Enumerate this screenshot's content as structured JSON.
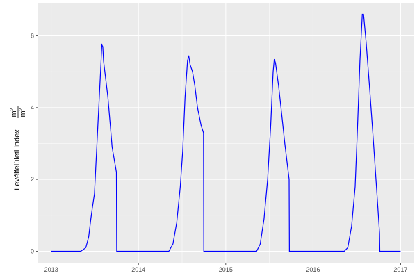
{
  "chart_data": {
    "type": "line",
    "title": "",
    "xlabel": "",
    "ylabel": "Levélfelületi index",
    "ylabel_unit": {
      "numerator": "m",
      "denominator": "m",
      "exponent": "2"
    },
    "xlim": [
      "2012-11-08",
      "2017-02-24"
    ],
    "ylim": [
      -0.32,
      6.9
    ],
    "x_ticks": [
      "2013",
      "2014",
      "2015",
      "2016",
      "2017"
    ],
    "y_ticks": [
      0,
      2,
      4,
      6
    ],
    "grid": true,
    "line_color": "#0000FF",
    "background": "#EBEBEB",
    "series": [
      {
        "points": [
          [
            "2013-01-01",
            0
          ],
          [
            "2013-05-05",
            0
          ],
          [
            "2013-05-26",
            0.1
          ],
          [
            "2013-06-07",
            0.4
          ],
          [
            "2013-06-16",
            0.9
          ],
          [
            "2013-06-22",
            1.2
          ],
          [
            "2013-07-01",
            1.6
          ],
          [
            "2013-07-10",
            2.8
          ],
          [
            "2013-07-19",
            4.0
          ],
          [
            "2013-07-28",
            5.2
          ],
          [
            "2013-08-01",
            5.75
          ],
          [
            "2013-08-05",
            5.7
          ],
          [
            "2013-08-08",
            5.3
          ],
          [
            "2013-08-17",
            4.8
          ],
          [
            "2013-08-26",
            4.3
          ],
          [
            "2013-09-04",
            3.6
          ],
          [
            "2013-09-13",
            2.9
          ],
          [
            "2013-10-01",
            2.2
          ],
          [
            "2013-10-02",
            0
          ],
          [
            "2014-05-08",
            0
          ],
          [
            "2014-05-25",
            0.2
          ],
          [
            "2014-06-10",
            0.8
          ],
          [
            "2014-06-25",
            1.8
          ],
          [
            "2014-07-05",
            2.8
          ],
          [
            "2014-07-15",
            4.3
          ],
          [
            "2014-07-25",
            5.3
          ],
          [
            "2014-07-30",
            5.45
          ],
          [
            "2014-08-05",
            5.2
          ],
          [
            "2014-08-15",
            5.0
          ],
          [
            "2014-08-25",
            4.6
          ],
          [
            "2014-09-05",
            4.0
          ],
          [
            "2014-09-20",
            3.5
          ],
          [
            "2014-09-30",
            3.3
          ],
          [
            "2014-10-01",
            0
          ],
          [
            "2015-05-10",
            0
          ],
          [
            "2015-05-25",
            0.2
          ],
          [
            "2015-06-10",
            0.9
          ],
          [
            "2015-06-25",
            2.0
          ],
          [
            "2015-07-08",
            3.5
          ],
          [
            "2015-07-18",
            5.0
          ],
          [
            "2015-07-23",
            5.35
          ],
          [
            "2015-07-28",
            5.25
          ],
          [
            "2015-08-10",
            4.6
          ],
          [
            "2015-08-20",
            4.0
          ],
          [
            "2015-09-05",
            3.0
          ],
          [
            "2015-09-23",
            2.0
          ],
          [
            "2015-09-24",
            0
          ],
          [
            "2016-05-10",
            0
          ],
          [
            "2016-05-25",
            0.1
          ],
          [
            "2016-06-10",
            0.7
          ],
          [
            "2016-06-25",
            1.8
          ],
          [
            "2016-07-05",
            3.5
          ],
          [
            "2016-07-15",
            5.3
          ],
          [
            "2016-07-25",
            6.6
          ],
          [
            "2016-07-30",
            6.6
          ],
          [
            "2016-08-10",
            5.8
          ],
          [
            "2016-08-25",
            4.5
          ],
          [
            "2016-09-10",
            3.0
          ],
          [
            "2016-09-25",
            1.5
          ],
          [
            "2016-10-05",
            0.5
          ],
          [
            "2016-10-06",
            0
          ],
          [
            "2017-01-01",
            0
          ]
        ]
      }
    ]
  }
}
